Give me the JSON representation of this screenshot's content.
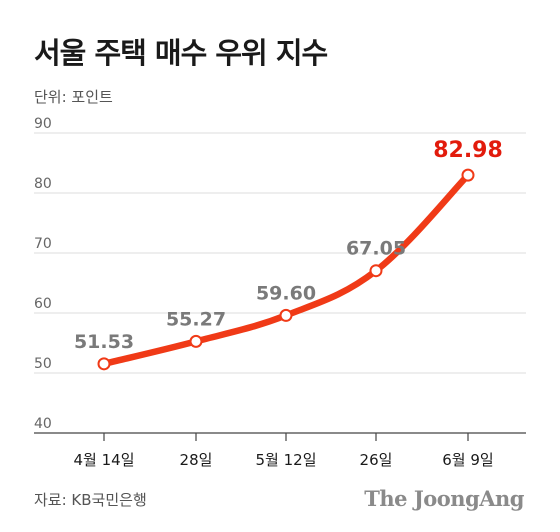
{
  "header": {
    "title": "서울 주택 매수 우위 지수",
    "unit": "단위: 포인트"
  },
  "footer": {
    "source": "자료: KB국민은행",
    "brand": "The JoongAng"
  },
  "colors": {
    "line": "#f03a17",
    "highlight": "#e21b0c",
    "label": "#7a7a7a",
    "grid": "#dddddd"
  },
  "chart_data": {
    "type": "line",
    "title": "서울 주택 매수 우위 지수",
    "xlabel": "",
    "ylabel": "단위: 포인트",
    "categories": [
      "4월 14일",
      "28일",
      "5월 12일",
      "26일",
      "6월 9일"
    ],
    "series": [
      {
        "values": [
          51.53,
          55.27,
          59.6,
          67.05,
          82.98
        ]
      }
    ],
    "data_labels": [
      "51.53",
      "55.27",
      "59.60",
      "67.05",
      "82.98"
    ],
    "ylim": [
      40,
      90
    ],
    "yticks": [
      40,
      50,
      60,
      70,
      80,
      90
    ],
    "grid": true,
    "legend": "none"
  }
}
